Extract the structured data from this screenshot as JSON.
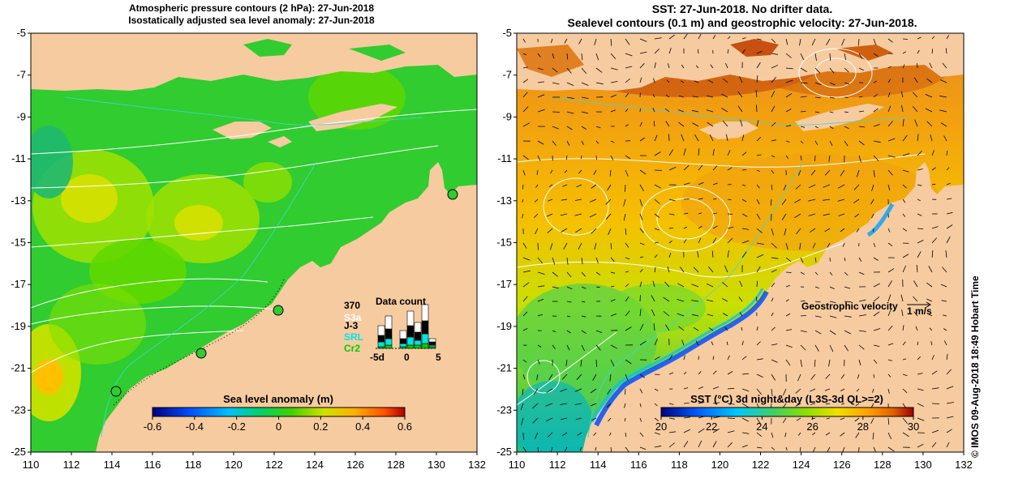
{
  "left_panel": {
    "title_line1": "Atmospheric pressure contours (2 hPa): 27-Jun-2018",
    "title_line2": "Isostatically adjusted sea level anomaly: 27-Jun-2018",
    "colorbar_label": "Sea level anomaly (m)",
    "colorbar_ticks": [
      "-0.6",
      "-0.4",
      "-0.2",
      "0",
      "0.2",
      "0.4",
      "0.6"
    ],
    "data_count": {
      "title": "Data count",
      "max_value": "370",
      "satellites": [
        {
          "name": "S3a",
          "color": "#ffffff"
        },
        {
          "name": "J-3",
          "color": "#000000"
        },
        {
          "name": "SRL",
          "color": "#00e5e5"
        },
        {
          "name": "Cr2",
          "color": "#00cc00"
        }
      ],
      "x_ticks": [
        "-5d",
        "0",
        "5"
      ]
    }
  },
  "right_panel": {
    "title_line1": "SST: 27-Jun-2018. No drifter data.",
    "title_line2": "Sealevel contours (0.1 m) and geostrophic velocity: 27-Jun-2018.",
    "velocity_legend": "Geostrophic velocity",
    "velocity_scale": "1 m/s",
    "colorbar_label": "SST (°C) 3d night&day (L3S-3d QL>=2)",
    "colorbar_ticks": [
      "20",
      "22",
      "24",
      "26",
      "28",
      "30"
    ]
  },
  "axes": {
    "lat_ticks": [
      "-5",
      "-7",
      "-9",
      "-11",
      "-13",
      "-15",
      "-17",
      "-19",
      "-21",
      "-23",
      "-25"
    ],
    "lon_ticks": [
      "110",
      "112",
      "114",
      "116",
      "118",
      "120",
      "122",
      "124",
      "126",
      "128",
      "130",
      "132"
    ]
  },
  "footer": "© IMOS 09-Aug-2018 18:49 Hobart Time",
  "colors": {
    "land": "#f7cba0",
    "sla_scale": [
      "#000080",
      "#0040ff",
      "#00c0ff",
      "#00e080",
      "#00d000",
      "#a0e000",
      "#e0e000",
      "#ffb000",
      "#ff6000",
      "#c00000"
    ],
    "sst_scale": [
      "#000080",
      "#0060ff",
      "#00c0ff",
      "#40d080",
      "#80e000",
      "#e0e000",
      "#ffc000",
      "#ff8000",
      "#d04000",
      "#a00000"
    ]
  }
}
